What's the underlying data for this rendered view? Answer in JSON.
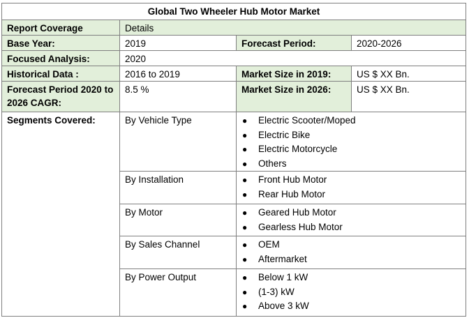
{
  "title": "Global Two Wheeler Hub Motor Market",
  "coverage": {
    "label": "Report Coverage",
    "value": "Details"
  },
  "base_year": {
    "label": "Base Year:",
    "value": "2019"
  },
  "forecast_period": {
    "label": "Forecast Period:",
    "value": "2020-2026"
  },
  "focused_analysis": {
    "label": "Focused Analysis:",
    "value": "2020"
  },
  "historical_data": {
    "label": "Historical Data :",
    "value": "2016 to 2019"
  },
  "market_size_2019": {
    "label": "Market Size in 2019:",
    "value": "US $ XX Bn."
  },
  "cagr": {
    "label": "Forecast Period 2020 to 2026 CAGR:",
    "value": "8.5 %"
  },
  "market_size_2026": {
    "label": "Market Size in 2026:",
    "value": "US $ XX Bn."
  },
  "segments_label": "Segments Covered:",
  "bullet": "●",
  "segments": [
    {
      "name": "By Vehicle Type",
      "items": [
        "Electric Scooter/Moped",
        "Electric Bike",
        "Electric Motorcycle",
        "Others"
      ]
    },
    {
      "name": "By Installation",
      "items": [
        "Front Hub Motor",
        "Rear Hub Motor"
      ]
    },
    {
      "name": "By Motor",
      "items": [
        "Geared Hub Motor",
        "Gearless Hub Motor"
      ]
    },
    {
      "name": "By Sales Channel",
      "items": [
        "OEM",
        "Aftermarket"
      ]
    },
    {
      "name": "By Power Output",
      "items": [
        "Below 1 kW",
        "(1-3) kW",
        "Above 3 kW"
      ]
    }
  ]
}
